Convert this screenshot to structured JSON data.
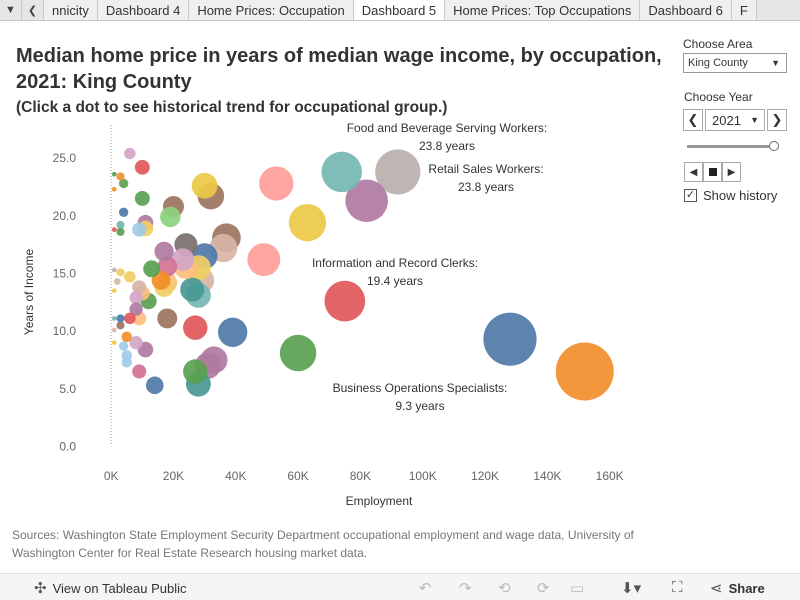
{
  "tabs": [
    {
      "label": "nnicity"
    },
    {
      "label": "Dashboard 4"
    },
    {
      "label": "Home Prices: Occupation"
    },
    {
      "label": "Dashboard 5"
    },
    {
      "label": "Home Prices: Top Occupations"
    },
    {
      "label": "Dashboard 6"
    },
    {
      "label": "F"
    }
  ],
  "title": "Median home price in years of median wage income, by occupation, 2021: King County",
  "subtitle": "(Click a dot to see historical trend for occupational group.)",
  "area": {
    "label": "Choose Area",
    "value": "King County"
  },
  "year": {
    "label": "Choose Year",
    "value": "2021"
  },
  "history": {
    "label": "Show history",
    "checked": true,
    "check": "✓"
  },
  "sources": "Sources: Washington State Employment Security Department occupational employment and wage data, University of Washington Center for Real Estate Research housing market data.",
  "toolbar": {
    "view_label": "View on Tableau Public",
    "share_label": "Share"
  },
  "icons": [
    "tableau-logo-icon",
    "undo-icon",
    "redo-icon",
    "revert-icon",
    "refresh-icon",
    "pause-icon",
    "download-icon",
    "fullscreen-icon",
    "share-icon"
  ],
  "chart_data": {
    "type": "scatter",
    "xlabel": "Employment",
    "ylabel": "Years of Income",
    "xlim": [
      -10000,
      180000
    ],
    "ylim": [
      -1,
      27
    ],
    "xticks": [
      0,
      20000,
      40000,
      60000,
      80000,
      100000,
      120000,
      140000,
      160000
    ],
    "xtick_labels": [
      "0K",
      "20K",
      "40K",
      "60K",
      "80K",
      "100K",
      "120K",
      "140K",
      "160K"
    ],
    "yticks": [
      0,
      5,
      10,
      15,
      20,
      25
    ],
    "ytick_labels": [
      "0.0",
      "5.0",
      "10.0",
      "15.0",
      "20.0",
      "25.0"
    ],
    "grid": false,
    "size_encodes": "employment",
    "points": [
      {
        "x": 152000,
        "y": 6.5,
        "color": "#f28e2b"
      },
      {
        "x": 128000,
        "y": 9.3,
        "color": "#4e79a7"
      },
      {
        "x": 92000,
        "y": 23.8,
        "color": "#bab0ac"
      },
      {
        "x": 82000,
        "y": 21.3,
        "color": "#b07aa1"
      },
      {
        "x": 74000,
        "y": 23.8,
        "color": "#76b7b2"
      },
      {
        "x": 75000,
        "y": 12.6,
        "color": "#e15759"
      },
      {
        "x": 63000,
        "y": 19.4,
        "color": "#edc948"
      },
      {
        "x": 60000,
        "y": 8.1,
        "color": "#59a14f"
      },
      {
        "x": 53000,
        "y": 22.8,
        "color": "#ff9d9a"
      },
      {
        "x": 49000,
        "y": 16.2,
        "color": "#ff9d9a"
      },
      {
        "x": 39000,
        "y": 9.9,
        "color": "#4e79a7"
      },
      {
        "x": 37000,
        "y": 18.1,
        "color": "#9c755f"
      },
      {
        "x": 36000,
        "y": 17.2,
        "color": "#d7b5a6"
      },
      {
        "x": 32000,
        "y": 21.7,
        "color": "#9c755f"
      },
      {
        "x": 30000,
        "y": 22.6,
        "color": "#edc948"
      },
      {
        "x": 30000,
        "y": 16.5,
        "color": "#4e79a7"
      },
      {
        "x": 31000,
        "y": 7.0,
        "color": "#b07aa1"
      },
      {
        "x": 33000,
        "y": 7.5,
        "color": "#b07aa1"
      },
      {
        "x": 29000,
        "y": 14.4,
        "color": "#d7b5a6"
      },
      {
        "x": 28000,
        "y": 15.5,
        "color": "#f1ce63"
      },
      {
        "x": 28000,
        "y": 13.1,
        "color": "#76b7b2"
      },
      {
        "x": 27000,
        "y": 6.5,
        "color": "#59a14f"
      },
      {
        "x": 28000,
        "y": 5.4,
        "color": "#499894"
      },
      {
        "x": 26000,
        "y": 13.6,
        "color": "#499894"
      },
      {
        "x": 27000,
        "y": 10.3,
        "color": "#e15759"
      },
      {
        "x": 24000,
        "y": 17.5,
        "color": "#79706e"
      },
      {
        "x": 23000,
        "y": 16.2,
        "color": "#d4a6c8"
      },
      {
        "x": 24000,
        "y": 15.5,
        "color": "#ffbe7d"
      },
      {
        "x": 20000,
        "y": 20.8,
        "color": "#9c755f"
      },
      {
        "x": 19000,
        "y": 19.9,
        "color": "#8cd17d"
      },
      {
        "x": 18000,
        "y": 14.2,
        "color": "#ffbe7d"
      },
      {
        "x": 17000,
        "y": 16.9,
        "color": "#b07aa1"
      },
      {
        "x": 17000,
        "y": 13.8,
        "color": "#f1ce63"
      },
      {
        "x": 18000,
        "y": 11.1,
        "color": "#9c755f"
      },
      {
        "x": 18000,
        "y": 15.6,
        "color": "#d37295"
      },
      {
        "x": 16000,
        "y": 14.4,
        "color": "#f28e2b"
      },
      {
        "x": 13000,
        "y": 15.4,
        "color": "#59a14f"
      },
      {
        "x": 12000,
        "y": 12.6,
        "color": "#59a14f"
      },
      {
        "x": 14000,
        "y": 5.3,
        "color": "#4e79a7"
      },
      {
        "x": 11000,
        "y": 19.4,
        "color": "#b07aa1"
      },
      {
        "x": 11000,
        "y": 18.9,
        "color": "#f1ce63"
      },
      {
        "x": 10000,
        "y": 21.5,
        "color": "#59a14f"
      },
      {
        "x": 10000,
        "y": 24.2,
        "color": "#e15759"
      },
      {
        "x": 9000,
        "y": 18.8,
        "color": "#a0cbe8"
      },
      {
        "x": 9000,
        "y": 13.8,
        "color": "#d7b5a6"
      },
      {
        "x": 10000,
        "y": 13.3,
        "color": "#ffbe7d"
      },
      {
        "x": 8000,
        "y": 12.9,
        "color": "#d4a6c8"
      },
      {
        "x": 8000,
        "y": 11.9,
        "color": "#b07aa1"
      },
      {
        "x": 9000,
        "y": 11.1,
        "color": "#ffbe7d"
      },
      {
        "x": 8000,
        "y": 9.0,
        "color": "#d4a6c8"
      },
      {
        "x": 11000,
        "y": 8.4,
        "color": "#b07aa1"
      },
      {
        "x": 9000,
        "y": 6.5,
        "color": "#d37295"
      },
      {
        "x": 6000,
        "y": 25.4,
        "color": "#d4a6c8"
      },
      {
        "x": 4000,
        "y": 22.8,
        "color": "#59a14f"
      },
      {
        "x": 3000,
        "y": 23.4,
        "color": "#f28e2b"
      },
      {
        "x": 4000,
        "y": 20.3,
        "color": "#4e79a7"
      },
      {
        "x": 3000,
        "y": 19.2,
        "color": "#76b7b2"
      },
      {
        "x": 3000,
        "y": 18.6,
        "color": "#59a14f"
      },
      {
        "x": 6000,
        "y": 11.1,
        "color": "#e15759"
      },
      {
        "x": 5000,
        "y": 9.5,
        "color": "#f28e2b"
      },
      {
        "x": 4000,
        "y": 8.7,
        "color": "#a0cbe8"
      },
      {
        "x": 5000,
        "y": 7.9,
        "color": "#a0cbe8"
      },
      {
        "x": 5000,
        "y": 7.3,
        "color": "#a0cbe8"
      },
      {
        "x": 3000,
        "y": 10.5,
        "color": "#9c755f"
      },
      {
        "x": 3000,
        "y": 11.1,
        "color": "#4e79a7"
      },
      {
        "x": 6000,
        "y": 14.7,
        "color": "#f1ce63"
      },
      {
        "x": 3000,
        "y": 15.1,
        "color": "#f1ce63"
      },
      {
        "x": 2000,
        "y": 14.3,
        "color": "#d7b5a6"
      },
      {
        "x": 1000,
        "y": 23.6,
        "color": "#59a14f"
      },
      {
        "x": 1000,
        "y": 22.3,
        "color": "#f28e2b"
      },
      {
        "x": 1000,
        "y": 18.8,
        "color": "#e15759"
      },
      {
        "x": 1000,
        "y": 15.3,
        "color": "#bab0ac"
      },
      {
        "x": 1000,
        "y": 13.5,
        "color": "#edc948"
      },
      {
        "x": 1000,
        "y": 11.1,
        "color": "#76b7b2"
      },
      {
        "x": 1000,
        "y": 10.1,
        "color": "#d7b5a6"
      },
      {
        "x": 1000,
        "y": 9.0,
        "color": "#edc948"
      }
    ],
    "annotations": [
      {
        "name": "Food and Beverage Serving Workers:",
        "value": "23.8 years"
      },
      {
        "name": "Retail Sales Workers:",
        "value": "23.8 years"
      },
      {
        "name": "Information and Record Clerks:",
        "value": "19.4 years"
      },
      {
        "name": "Business Operations Specialists:",
        "value": "9.3 years"
      }
    ]
  }
}
